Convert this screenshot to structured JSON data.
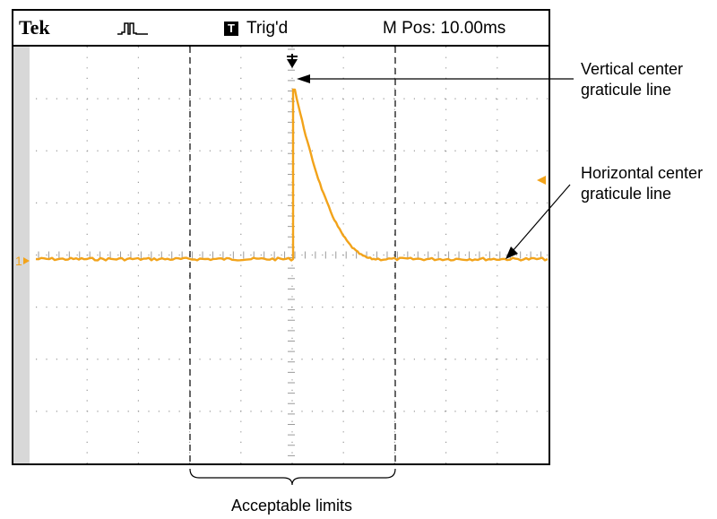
{
  "header": {
    "brand": "Tek",
    "trigger_badge": "T",
    "trigger_status": "Trig'd",
    "main_position": "M Pos: 10.00ms"
  },
  "channel_marker": "1",
  "callouts": {
    "vertical_line": [
      "Vertical center",
      "graticule line"
    ],
    "horizontal_line": [
      "Horizontal center",
      "graticule line"
    ],
    "acceptable_limits": "Acceptable limits"
  },
  "colors": {
    "trace": "#f2a31a",
    "grid": "#9a9a9a",
    "frame": "#000000"
  },
  "icons": {
    "acquisition": "pulse-waveform-icon",
    "trigger_position": "trigger-position-marker-icon",
    "trigger_level": "trigger-level-arrow-icon"
  }
}
